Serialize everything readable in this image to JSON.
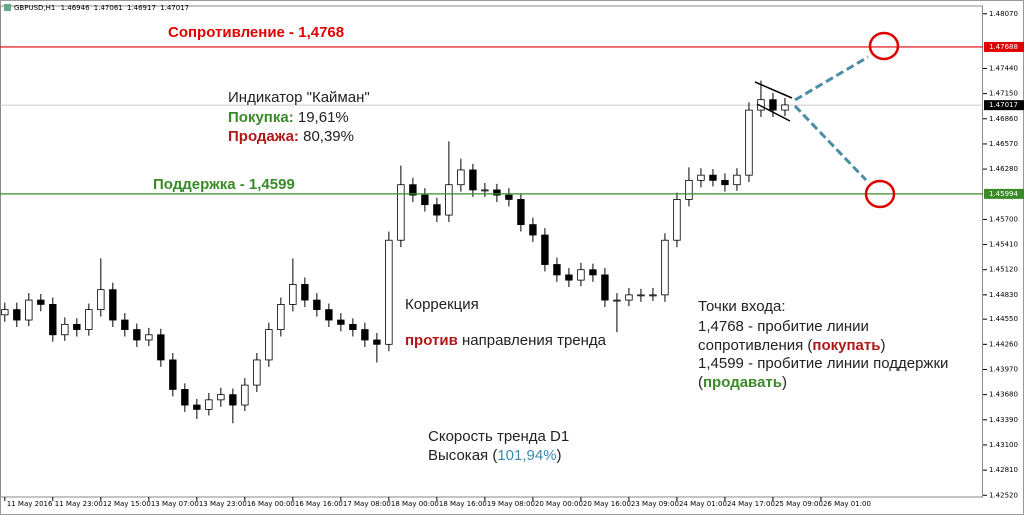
{
  "chart_data": {
    "type": "candlestick",
    "title": "GBPUSD,H1",
    "header_ohlc": [
      1.46946,
      1.47061,
      1.46917,
      1.47017
    ],
    "xlim": [
      -0.4,
      81.5
    ],
    "ylim": [
      1.425,
      1.4816
    ],
    "xticks": [
      {
        "value": 0,
        "label": "11 May 2016"
      },
      {
        "value": 4,
        "label": "11 May 23:00"
      },
      {
        "value": 8,
        "label": "12 May 15:00"
      },
      {
        "value": 12,
        "label": "13 May 07:00"
      },
      {
        "value": 16,
        "label": "13 May 23:00"
      },
      {
        "value": 20,
        "label": "16 May 00:00"
      },
      {
        "value": 24,
        "label": "16 May 16:00"
      },
      {
        "value": 28,
        "label": "17 May 08:00"
      },
      {
        "value": 32,
        "label": "18 May 00:00"
      },
      {
        "value": 36,
        "label": "18 May 16:00"
      },
      {
        "value": 40,
        "label": "19 May 08:00"
      },
      {
        "value": 44,
        "label": "20 May 00:00"
      },
      {
        "value": 48,
        "label": "20 May 16:00"
      },
      {
        "value": 52,
        "label": "23 May 09:00"
      },
      {
        "value": 56,
        "label": "24 May 01:00"
      },
      {
        "value": 60,
        "label": "24 May 17:00"
      },
      {
        "value": 64,
        "label": "25 May 09:00"
      },
      {
        "value": 68,
        "label": "26 May 01:00"
      }
    ],
    "yticks": [
      {
        "value": 1.4807,
        "label": "1.48070"
      },
      {
        "value": 1.4744,
        "label": "1.47440"
      },
      {
        "value": 1.4715,
        "label": "1.47150"
      },
      {
        "value": 1.4686,
        "label": "1.46860"
      },
      {
        "value": 1.4657,
        "label": "1.46570"
      },
      {
        "value": 1.4628,
        "label": "1.46280"
      },
      {
        "value": 1.457,
        "label": "1.45700"
      },
      {
        "value": 1.4541,
        "label": "1.45410"
      },
      {
        "value": 1.4512,
        "label": "1.45120"
      },
      {
        "value": 1.4483,
        "label": "1.44830"
      },
      {
        "value": 1.4455,
        "label": "1.44550"
      },
      {
        "value": 1.4426,
        "label": "1.44260"
      },
      {
        "value": 1.4397,
        "label": "1.43970"
      },
      {
        "value": 1.4368,
        "label": "1.43680"
      },
      {
        "value": 1.4339,
        "label": "1.43390"
      },
      {
        "value": 1.431,
        "label": "1.43100"
      },
      {
        "value": 1.4281,
        "label": "1.42810"
      },
      {
        "value": 1.4252,
        "label": "1.42520"
      }
    ],
    "open": [
      1.446,
      1.4466,
      1.4454,
      1.4477,
      1.4472,
      1.4437,
      1.4449,
      1.4443,
      1.4466,
      1.4489,
      1.4454,
      1.4443,
      1.4431,
      1.4437,
      1.4408,
      1.4374,
      1.4356,
      1.4351,
      1.4362,
      1.4368,
      1.4356,
      1.4379,
      1.4408,
      1.4443,
      1.4472,
      1.4495,
      1.4477,
      1.4466,
      1.4454,
      1.4449,
      1.4443,
      1.4431,
      1.4426,
      1.4546,
      1.461,
      1.4598,
      1.4587,
      1.4575,
      1.461,
      1.4627,
      1.4604,
      1.4604,
      1.4598,
      1.4593,
      1.4564,
      1.4552,
      1.4518,
      1.4506,
      1.45,
      1.4512,
      1.4506,
      1.4477,
      1.4477,
      1.4483,
      1.4483,
      1.4483,
      1.4546,
      1.4593,
      1.4615,
      1.4621,
      1.4615,
      1.461,
      1.4621,
      1.4696,
      1.4708,
      1.4696
    ],
    "high": [
      1.4474,
      1.4474,
      1.4485,
      1.4484,
      1.448,
      1.4457,
      1.4456,
      1.4473,
      1.4525,
      1.4497,
      1.4462,
      1.445,
      1.4445,
      1.4444,
      1.4416,
      1.4381,
      1.4363,
      1.437,
      1.4376,
      1.4375,
      1.4387,
      1.4416,
      1.4451,
      1.448,
      1.4525,
      1.4503,
      1.4485,
      1.4473,
      1.4462,
      1.4456,
      1.4451,
      1.4439,
      1.4556,
      1.4632,
      1.4618,
      1.4606,
      1.4595,
      1.466,
      1.464,
      1.4634,
      1.4612,
      1.4611,
      1.4606,
      1.46,
      1.4572,
      1.456,
      1.4526,
      1.4514,
      1.452,
      1.4519,
      1.4514,
      1.4485,
      1.4491,
      1.449,
      1.4491,
      1.4554,
      1.4601,
      1.463,
      1.4629,
      1.4628,
      1.4623,
      1.4629,
      1.4705,
      1.473,
      1.4716,
      1.471
    ],
    "low": [
      1.4452,
      1.4446,
      1.4447,
      1.4464,
      1.4429,
      1.443,
      1.4435,
      1.4436,
      1.4458,
      1.4446,
      1.4435,
      1.4423,
      1.4424,
      1.44,
      1.4366,
      1.4348,
      1.434,
      1.4344,
      1.4354,
      1.4335,
      1.4349,
      1.4371,
      1.44,
      1.4435,
      1.4464,
      1.4469,
      1.4458,
      1.4446,
      1.4441,
      1.4435,
      1.4423,
      1.4405,
      1.4418,
      1.4538,
      1.459,
      1.4579,
      1.4567,
      1.4567,
      1.4602,
      1.4596,
      1.4596,
      1.459,
      1.4585,
      1.4556,
      1.4544,
      1.451,
      1.4498,
      1.4492,
      1.4493,
      1.4498,
      1.4469,
      1.444,
      1.447,
      1.4475,
      1.4476,
      1.4475,
      1.4538,
      1.4585,
      1.4607,
      1.4608,
      1.4602,
      1.4603,
      1.4613,
      1.4688,
      1.4688,
      1.4689
    ],
    "close": [
      1.4466,
      1.4454,
      1.4477,
      1.4472,
      1.4437,
      1.4449,
      1.4443,
      1.4466,
      1.4489,
      1.4454,
      1.4443,
      1.4431,
      1.4437,
      1.4408,
      1.4374,
      1.4356,
      1.4351,
      1.4362,
      1.4368,
      1.4356,
      1.4379,
      1.4408,
      1.4443,
      1.4472,
      1.4495,
      1.4477,
      1.4466,
      1.4454,
      1.4449,
      1.4443,
      1.4431,
      1.4426,
      1.4546,
      1.461,
      1.4598,
      1.4587,
      1.4575,
      1.461,
      1.4627,
      1.4604,
      1.4604,
      1.4598,
      1.4593,
      1.4564,
      1.4552,
      1.4518,
      1.4506,
      1.45,
      1.4512,
      1.4506,
      1.4477,
      1.4477,
      1.4483,
      1.4483,
      1.4483,
      1.4546,
      1.4593,
      1.4615,
      1.4621,
      1.4615,
      1.461,
      1.4621,
      1.4696,
      1.4708,
      1.4696,
      1.4702
    ],
    "current_price": 1.47017,
    "levels": [
      {
        "name": "Сопротивление - 1,4768",
        "value": 1.47688,
        "color": "#e00000"
      },
      {
        "name": "Поддержка - 1,4599",
        "value": 1.45994,
        "color": "#3a8a2a"
      }
    ],
    "annotations": {
      "indicator": {
        "title": "Индикатор \"Кайман\"",
        "buy_label": "Покупка:",
        "buy_value": "19,61%",
        "sell_label": "Продажа:",
        "sell_value": "80,39%"
      },
      "correction": {
        "title": "Коррекция",
        "word": "против",
        "rest": "направления тренда"
      },
      "entry": {
        "title": "Точки входа:",
        "line1": "1,4768 - пробитие линии",
        "line2": "сопротивления (",
        "buy": "покупать",
        "close2": ")",
        "line3": "1,4599 - пробитие линии поддержки",
        "open4": "(",
        "sell": "продавать",
        "close4": ")"
      },
      "speed": {
        "title": "Скорость тренда D1",
        "prefix": "Высокая (",
        "value": "101,94%",
        "suffix": ")"
      }
    }
  }
}
